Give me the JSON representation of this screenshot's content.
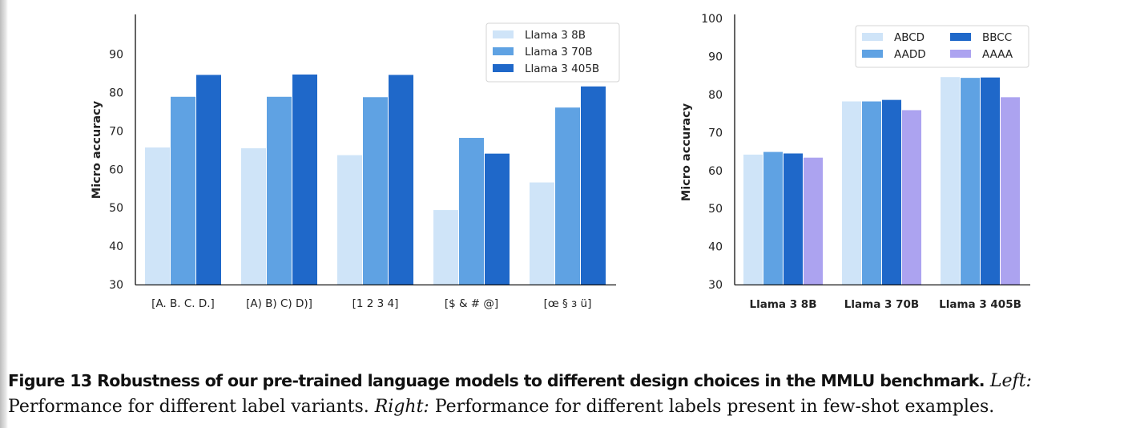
{
  "chart_data": [
    {
      "type": "bar",
      "ylabel": "Micro accuracy",
      "xlabel": "",
      "ylim": [
        30,
        95
      ],
      "yticks": [
        30,
        40,
        50,
        60,
        70,
        80,
        90
      ],
      "categories": [
        "[A. B. C. D.]",
        "[A) B) C) D)]",
        "[1 2 3 4]",
        "[$ & # @]",
        "[œ § з ü]"
      ],
      "legend_position": "top-right",
      "series": [
        {
          "name": "Llama 3 8B",
          "color": "#cfe4f8",
          "values": [
            65.7,
            65.5,
            63.7,
            49.4,
            56.6
          ]
        },
        {
          "name": "Llama 3 70B",
          "color": "#5fa2e3",
          "values": [
            78.9,
            78.9,
            78.8,
            68.2,
            76.1
          ]
        },
        {
          "name": "Llama 3 405B",
          "color": "#1f68c9",
          "values": [
            84.6,
            84.7,
            84.6,
            64.1,
            81.6
          ]
        }
      ]
    },
    {
      "type": "bar",
      "ylabel": "Micro accuracy",
      "xlabel": "",
      "ylim": [
        30,
        100
      ],
      "yticks": [
        30,
        40,
        50,
        60,
        70,
        80,
        90,
        100
      ],
      "categories": [
        "Llama 3 8B",
        "Llama 3 70B",
        "Llama 3 405B"
      ],
      "legend_position": "top-right",
      "series": [
        {
          "name": "ABCD",
          "color": "#cfe4f8",
          "values": [
            64.2,
            78.2,
            84.6
          ]
        },
        {
          "name": "AADD",
          "color": "#5fa2e3",
          "values": [
            64.9,
            78.2,
            84.4
          ]
        },
        {
          "name": "BBCC",
          "color": "#1f68c9",
          "values": [
            64.5,
            78.6,
            84.5
          ]
        },
        {
          "name": "AAAA",
          "color": "#aca3f0",
          "values": [
            63.4,
            75.9,
            79.3
          ]
        }
      ]
    }
  ],
  "caption": {
    "title": "Figure 13  Robustness of our pre-trained language models to different design choices in the MMLU benchmark.",
    "left_label": "Left:",
    "left_text": " Performance for different label variants. ",
    "right_label": "Right:",
    "right_text": " Performance for different labels present in few-shot examples."
  }
}
